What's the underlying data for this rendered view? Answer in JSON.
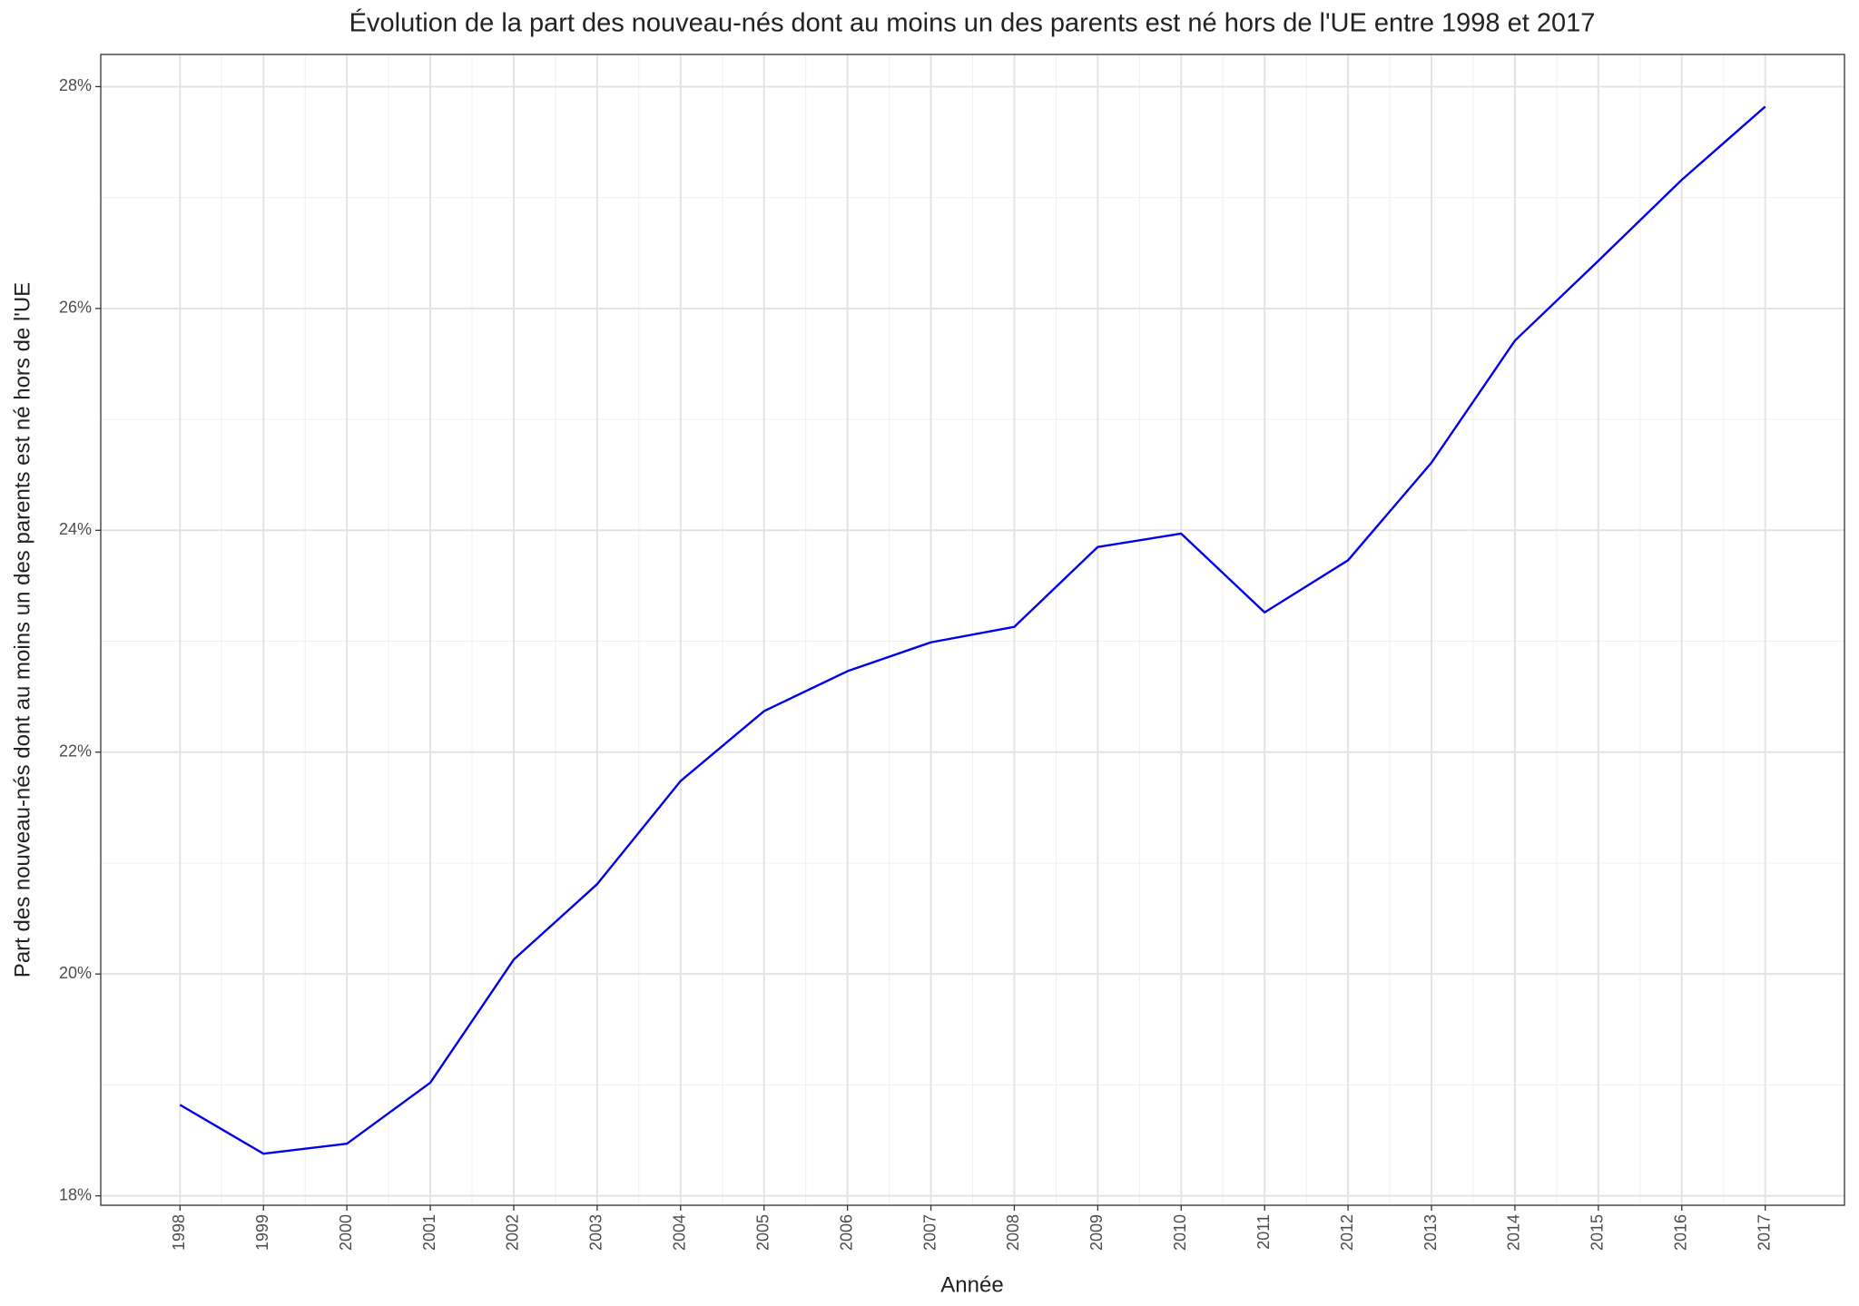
{
  "chart_data": {
    "type": "line",
    "title": "Évolution de la part des nouveau-nés dont au moins un des parents est né hors de l'UE entre 1998 et 2017",
    "x_label": "Année",
    "y_label": "Part des nouveau-nés dont au moins un des parents est né hors de l'UE",
    "x": [
      1998,
      1999,
      2000,
      2001,
      2002,
      2003,
      2004,
      2005,
      2006,
      2007,
      2008,
      2009,
      2010,
      2011,
      2012,
      2013,
      2014,
      2015,
      2016,
      2017
    ],
    "series": [
      {
        "color": "#0000ee",
        "values": [
          18.82,
          18.38,
          18.47,
          19.02,
          20.13,
          20.81,
          21.74,
          22.37,
          22.73,
          22.99,
          23.13,
          23.85,
          23.97,
          23.26,
          23.73,
          24.61,
          25.71,
          26.43,
          27.16,
          27.82
        ]
      }
    ],
    "xlim": [
      1997.05,
      2017.95
    ],
    "xticks": [
      1998,
      1999,
      2000,
      2001,
      2002,
      2003,
      2004,
      2005,
      2006,
      2007,
      2008,
      2009,
      2010,
      2011,
      2012,
      2013,
      2014,
      2015,
      2016,
      2017
    ],
    "ylim": [
      17.915,
      28.29
    ],
    "yticks": [
      {
        "value": 18,
        "label": "18%"
      },
      {
        "value": 20,
        "label": "20%"
      },
      {
        "value": 22,
        "label": "22%"
      },
      {
        "value": 24,
        "label": "24%"
      },
      {
        "value": 26,
        "label": "26%"
      },
      {
        "value": 28,
        "label": "28%"
      }
    ],
    "grid": true
  }
}
